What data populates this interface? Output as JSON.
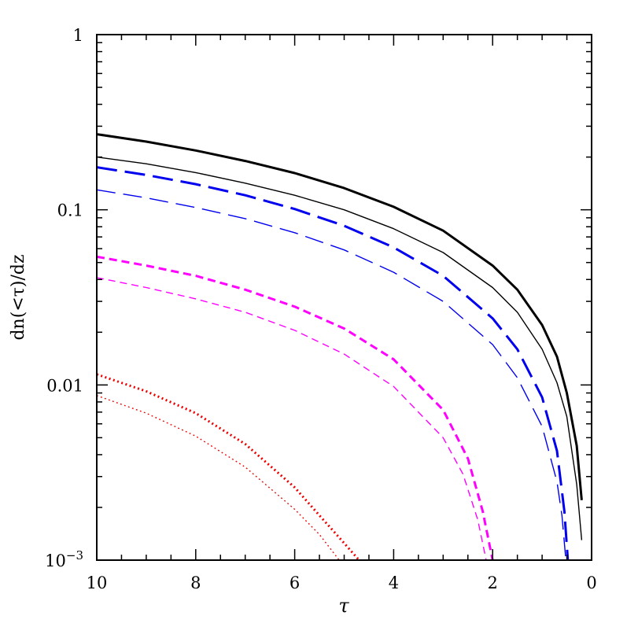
{
  "chart_data": {
    "type": "line",
    "title": "",
    "xlabel": "τ",
    "ylabel": "dn(<τ)/dz",
    "xlim": [
      10,
      0
    ],
    "ylim": [
      0.001,
      1
    ],
    "yscale": "log",
    "grid": false,
    "legend": "none",
    "x_ticks": [
      {
        "value": 10,
        "label": "10"
      },
      {
        "value": 8,
        "label": "8"
      },
      {
        "value": 6,
        "label": "6"
      },
      {
        "value": 4,
        "label": "4"
      },
      {
        "value": 2,
        "label": "2"
      },
      {
        "value": 0,
        "label": "0"
      }
    ],
    "y_ticks": [
      {
        "value": 1,
        "label": "1"
      },
      {
        "value": 0.1,
        "label": "0.1"
      },
      {
        "value": 0.01,
        "label": "0.01"
      },
      {
        "value": 0.001,
        "label": "10",
        "sup": "−3"
      }
    ],
    "series": [
      {
        "color": "#000000",
        "dash": "solid",
        "weight": "thick",
        "x": [
          10,
          9,
          8,
          7,
          6,
          5,
          4,
          3,
          2,
          1.5,
          1.0,
          0.7,
          0.5,
          0.3,
          0.2
        ],
        "y": [
          0.27,
          0.245,
          0.218,
          0.19,
          0.162,
          0.133,
          0.104,
          0.076,
          0.048,
          0.035,
          0.022,
          0.0145,
          0.009,
          0.0045,
          0.0022
        ]
      },
      {
        "color": "#000000",
        "dash": "solid",
        "weight": "thin",
        "x": [
          10,
          9,
          8,
          7,
          6,
          5,
          4,
          3,
          2,
          1.5,
          1.0,
          0.7,
          0.5,
          0.3,
          0.2
        ],
        "y": [
          0.2,
          0.183,
          0.163,
          0.142,
          0.121,
          0.1,
          0.078,
          0.057,
          0.036,
          0.026,
          0.016,
          0.0103,
          0.0066,
          0.0027,
          0.0013
        ]
      },
      {
        "color": "#0000ee",
        "dash": "long",
        "weight": "thick",
        "x": [
          10,
          9,
          8,
          7,
          6,
          5,
          4,
          3,
          2,
          1.5,
          1.0,
          0.7,
          0.55,
          0.48
        ],
        "y": [
          0.175,
          0.158,
          0.14,
          0.121,
          0.101,
          0.081,
          0.061,
          0.042,
          0.024,
          0.016,
          0.0085,
          0.0042,
          0.0019,
          0.001
        ]
      },
      {
        "color": "#0000ee",
        "dash": "long",
        "weight": "thin",
        "x": [
          10,
          9,
          8,
          7,
          6,
          5,
          4,
          3,
          2,
          1.5,
          1.0,
          0.7,
          0.6,
          0.52
        ],
        "y": [
          0.13,
          0.117,
          0.103,
          0.089,
          0.074,
          0.059,
          0.044,
          0.03,
          0.017,
          0.011,
          0.0058,
          0.0028,
          0.0018,
          0.001
        ]
      },
      {
        "color": "#ff00ff",
        "dash": "short",
        "weight": "thick",
        "x": [
          10,
          9,
          8,
          7,
          6,
          5,
          4,
          3,
          2.5,
          2.2,
          2.0
        ],
        "y": [
          0.054,
          0.048,
          0.042,
          0.035,
          0.028,
          0.021,
          0.014,
          0.0072,
          0.0038,
          0.0019,
          0.001
        ]
      },
      {
        "color": "#ff00ff",
        "dash": "short",
        "weight": "thin",
        "x": [
          10,
          9,
          8,
          7,
          6,
          5,
          4,
          3,
          2.6,
          2.3,
          2.13
        ],
        "y": [
          0.041,
          0.036,
          0.031,
          0.026,
          0.0205,
          0.015,
          0.0098,
          0.005,
          0.0031,
          0.0017,
          0.001
        ]
      },
      {
        "color": "#ee0000",
        "dash": "dotted",
        "weight": "thick",
        "x": [
          10,
          9,
          8,
          7,
          6,
          5.5,
          5.0,
          4.7
        ],
        "y": [
          0.0115,
          0.0092,
          0.0069,
          0.0046,
          0.0026,
          0.0018,
          0.00125,
          0.001
        ]
      },
      {
        "color": "#ee0000",
        "dash": "dotted",
        "weight": "thin",
        "x": [
          10,
          9,
          8,
          7,
          6,
          5.5,
          5.1
        ],
        "y": [
          0.0087,
          0.0069,
          0.0051,
          0.0034,
          0.00195,
          0.0014,
          0.001
        ]
      }
    ]
  }
}
